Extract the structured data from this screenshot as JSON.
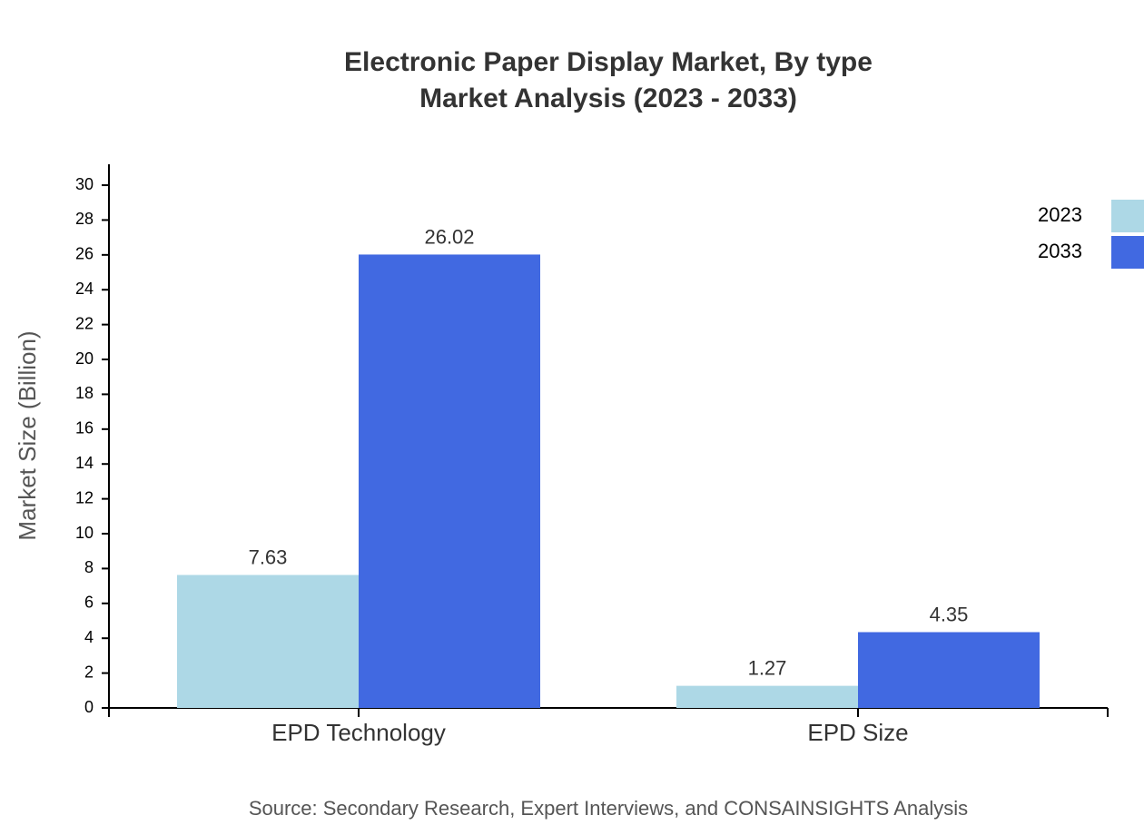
{
  "chart_data": {
    "type": "bar",
    "title": "Electronic Paper Display Market, By type",
    "subtitle": "Market Analysis (2023 - 2033)",
    "y_label": "Market Size (Billion)",
    "source": "Source: Secondary Research, Expert Interviews, and CONSAINSIGHTS Analysis",
    "categories": [
      "EPD Technology",
      "EPD Size"
    ],
    "series": [
      {
        "name": "2023",
        "color": "#add8e6",
        "values": [
          7.63,
          1.27
        ]
      },
      {
        "name": "2033",
        "color": "#4169e1",
        "values": [
          26.02,
          4.35
        ]
      }
    ],
    "ylim": [
      0,
      31.2
    ],
    "yticks": [
      0,
      2,
      4,
      6,
      8,
      10,
      12,
      14,
      16,
      18,
      20,
      22,
      24,
      26,
      28,
      30
    ],
    "legend": "top-right"
  }
}
